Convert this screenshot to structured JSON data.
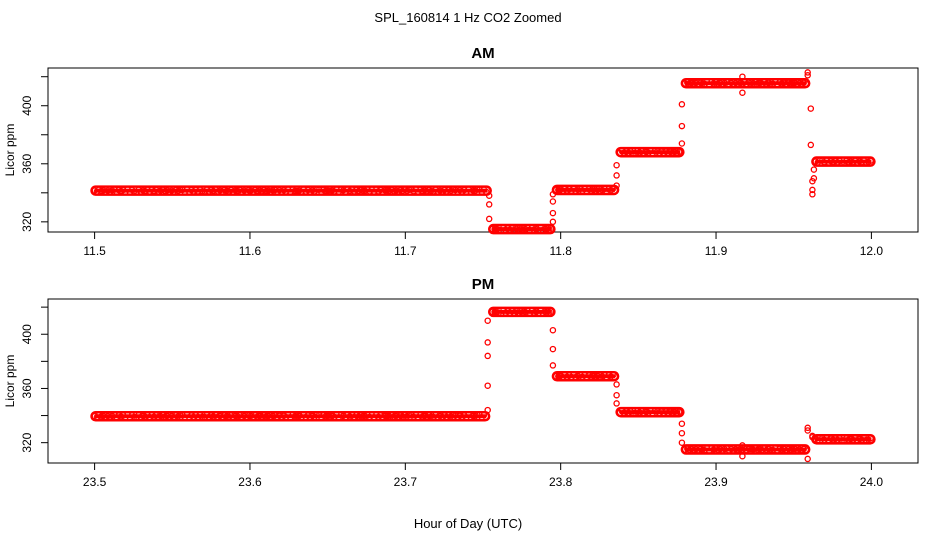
{
  "figure": {
    "title": "SPL_160814  1 Hz CO2 Zoomed",
    "xlabel": "Hour of Day (UTC)"
  },
  "chart_data": [
    {
      "type": "scatter",
      "title": "AM",
      "xlabel": "",
      "ylabel": "Licor ppm",
      "xlim": [
        11.47,
        12.03
      ],
      "ylim": [
        313,
        426
      ],
      "xticks": [
        11.5,
        11.6,
        11.7,
        11.8,
        11.9,
        12.0
      ],
      "xtick_labels": [
        "11.5",
        "11.6",
        "11.7",
        "11.8",
        "11.9",
        "12.0"
      ],
      "yticks": [
        320,
        360,
        400
      ],
      "ytick_labels": [
        "320",
        "360",
        "400"
      ],
      "marker_color": "#ff0000",
      "series": [
        {
          "segments": [
            {
              "x0": 11.5,
              "x1": 11.753,
              "y": 341.5
            },
            {
              "x0": 11.756,
              "x1": 11.794,
              "y": 315.0
            },
            {
              "x0": 11.797,
              "x1": 11.835,
              "y": 342.0
            },
            {
              "x0": 11.838,
              "x1": 11.877,
              "y": 368.0
            },
            {
              "x0": 11.88,
              "x1": 11.958,
              "y": 415.5
            },
            {
              "x0": 11.964,
              "x1": 12.0,
              "y": 361.5
            }
          ],
          "transitions": [
            {
              "x": 11.754,
              "y": [
                338,
                332,
                322
              ]
            },
            {
              "x": 11.795,
              "y": [
                320,
                326,
                334,
                339
              ]
            },
            {
              "x": 11.836,
              "y": [
                345,
                352,
                359
              ]
            },
            {
              "x": 11.878,
              "y": [
                374,
                386,
                401
              ]
            },
            {
              "x": 11.917,
              "y": [
                420,
                409
              ]
            },
            {
              "x": 11.959,
              "y": [
                423,
                421
              ]
            },
            {
              "x": 11.961,
              "y": [
                398,
                373
              ]
            },
            {
              "x": 11.962,
              "y": [
                348,
                342,
                339
              ]
            },
            {
              "x": 11.963,
              "y": [
                350,
                356
              ]
            }
          ]
        }
      ]
    },
    {
      "type": "scatter",
      "title": "PM",
      "xlabel": "",
      "ylabel": "Licor ppm",
      "xlim": [
        23.47,
        24.03
      ],
      "ylim": [
        305,
        426
      ],
      "xticks": [
        23.5,
        23.6,
        23.7,
        23.8,
        23.9,
        24.0
      ],
      "xtick_labels": [
        "23.5",
        "23.6",
        "23.7",
        "23.8",
        "23.9",
        "24.0"
      ],
      "yticks": [
        320,
        360,
        400
      ],
      "ytick_labels": [
        "320",
        "360",
        "400"
      ],
      "marker_color": "#ff0000",
      "series": [
        {
          "segments": [
            {
              "x0": 23.5,
              "x1": 23.752,
              "y": 339.5
            },
            {
              "x0": 23.756,
              "x1": 23.794,
              "y": 416.5
            },
            {
              "x0": 23.797,
              "x1": 23.835,
              "y": 369.0
            },
            {
              "x0": 23.838,
              "x1": 23.877,
              "y": 342.5
            },
            {
              "x0": 23.88,
              "x1": 23.958,
              "y": 315.0
            },
            {
              "x0": 23.964,
              "x1": 24.0,
              "y": 322.5
            }
          ],
          "transitions": [
            {
              "x": 23.753,
              "y": [
                344,
                362,
                384,
                394,
                410
              ]
            },
            {
              "x": 23.795,
              "y": [
                403,
                389,
                377
              ]
            },
            {
              "x": 23.836,
              "y": [
                363,
                355,
                349
              ]
            },
            {
              "x": 23.878,
              "y": [
                334,
                327,
                320
              ]
            },
            {
              "x": 23.917,
              "y": [
                318,
                310
              ]
            },
            {
              "x": 23.959,
              "y": [
                308,
                331,
                329
              ]
            },
            {
              "x": 23.962,
              "y": [
                325,
                324
              ]
            }
          ]
        }
      ]
    }
  ]
}
